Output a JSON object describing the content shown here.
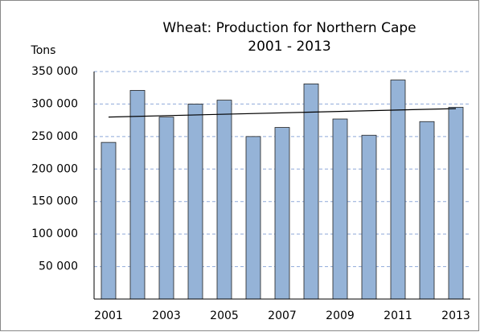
{
  "chart_data": {
    "type": "bar",
    "title": "Wheat: Production for Northern Cape",
    "subtitle": "2001 - 2013",
    "y_label": "Tons",
    "categories": [
      "2001",
      null,
      "2003",
      null,
      "2005",
      null,
      "2007",
      null,
      "2009",
      null,
      "2011",
      null,
      "2013"
    ],
    "values": [
      241000,
      321000,
      280000,
      300000,
      306000,
      250000,
      264000,
      331000,
      277000,
      252000,
      337000,
      273000,
      295000
    ],
    "color": "#95b3d7",
    "trendline": [
      280000,
      293000
    ],
    "ylim": [
      0,
      350000
    ],
    "yticks": [
      {
        "value": 50000,
        "label": "50 000"
      },
      {
        "value": 100000,
        "label": "100 000"
      },
      {
        "value": 150000,
        "label": "150 000"
      },
      {
        "value": 200000,
        "label": "200 000"
      },
      {
        "value": 250000,
        "label": "250 000"
      },
      {
        "value": 300000,
        "label": "300 000"
      },
      {
        "value": 350000,
        "label": "350 000"
      }
    ],
    "grid": true
  }
}
